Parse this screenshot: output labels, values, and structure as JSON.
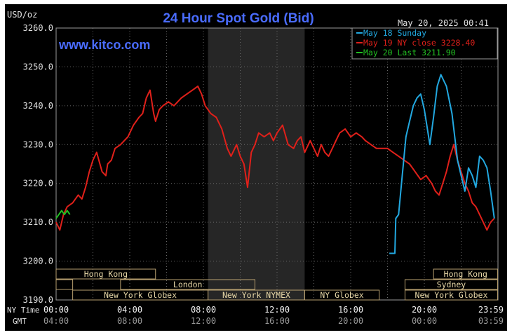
{
  "header": {
    "unit": "USD/oz",
    "title": "24 Hour Spot Gold (Bid)",
    "datetime": "May 20, 2025 00:41",
    "watermark": "www.kitco.com"
  },
  "legend": [
    {
      "text": "May 18 Sunday",
      "color": "#22a8e0"
    },
    {
      "text": "May 19 NY close 3228.40",
      "color": "#e0201a"
    },
    {
      "text": "May 20 Last 3211.90",
      "color": "#22c022"
    }
  ],
  "chart_data": {
    "type": "line",
    "title": "24 Hour Spot Gold (Bid)",
    "ylabel": "USD/oz",
    "ylim": [
      3190,
      3260
    ],
    "yticks": [
      "3260.0",
      "3250.0",
      "3240.0",
      "3230.0",
      "3220.0",
      "3210.0",
      "3200.0",
      "3190.0"
    ],
    "x_unit": "hours",
    "xlim": [
      0,
      24
    ],
    "x_rows": [
      {
        "label": "NY Time",
        "ticks": [
          "00:00",
          "04:00",
          "08:00",
          "12:00",
          "16:00",
          "20:00",
          "23:59"
        ]
      },
      {
        "label": "GMT",
        "ticks": [
          "04:00",
          "08:00",
          "12:00",
          "16:00",
          "20:00",
          "00:00",
          "03:59"
        ]
      }
    ],
    "x_tick_hours": [
      0,
      4,
      8,
      12,
      16,
      20,
      23.98
    ],
    "shaded_range": [
      8.25,
      13.5
    ],
    "sessions": [
      {
        "row": 0,
        "start": 0.0,
        "end": 5.4,
        "label": "Hong Kong"
      },
      {
        "row": 0,
        "start": 20.5,
        "end": 23.98,
        "label": "Hong Kong"
      },
      {
        "row": 1,
        "start": 0.0,
        "end": 0.9,
        "label": ""
      },
      {
        "row": 1,
        "start": 3.5,
        "end": 10.8,
        "label": "London"
      },
      {
        "row": 1,
        "start": 18.95,
        "end": 23.98,
        "label": "Sydney"
      },
      {
        "row": 2,
        "start": 0.9,
        "end": 8.25,
        "label": "New York Globex"
      },
      {
        "row": 2,
        "start": 8.25,
        "end": 13.5,
        "label": "New York NYMEX"
      },
      {
        "row": 2,
        "start": 13.5,
        "end": 17.55,
        "label": "NY Globex"
      },
      {
        "row": 2,
        "start": 18.95,
        "end": 23.98,
        "label": "New York Globex"
      }
    ],
    "series": [
      {
        "name": "May 19 NY close 3228.40",
        "color": "#e0201a",
        "x": [
          0,
          0.2,
          0.4,
          0.6,
          0.9,
          1.2,
          1.4,
          1.6,
          1.8,
          2.0,
          2.2,
          2.5,
          2.7,
          2.8,
          3.0,
          3.2,
          3.5,
          3.9,
          4.2,
          4.5,
          4.7,
          4.9,
          5.1,
          5.3,
          5.4,
          5.6,
          5.8,
          6.1,
          6.4,
          6.8,
          7.1,
          7.4,
          7.7,
          7.9,
          8.1,
          8.4,
          8.7,
          9.0,
          9.3,
          9.5,
          9.8,
          10.0,
          10.2,
          10.4,
          10.6,
          10.8,
          11.0,
          11.3,
          11.6,
          11.8,
          12.0,
          12.3,
          12.6,
          12.9,
          13.1,
          13.3,
          13.5,
          13.8,
          14.0,
          14.2,
          14.4,
          14.6,
          14.8,
          15.0,
          15.2,
          15.4,
          15.7,
          16.0,
          16.3,
          16.6,
          16.8,
          17.1,
          17.4,
          17.7,
          18.0,
          18.3,
          18.6,
          18.9,
          19.2,
          19.5,
          19.8,
          20.1,
          20.4,
          20.6,
          20.8,
          21.0,
          21.2,
          21.4,
          21.6,
          21.8,
          22.0,
          22.2,
          22.4,
          22.6,
          22.8,
          23.0,
          23.2,
          23.4,
          23.6,
          23.8
        ],
        "y": [
          3210,
          3208,
          3212,
          3214,
          3215,
          3217,
          3216,
          3219,
          3223,
          3226,
          3228,
          3223,
          3222,
          3225,
          3226,
          3229,
          3230,
          3232,
          3235,
          3237,
          3238,
          3242,
          3244,
          3238,
          3236,
          3239,
          3240,
          3241,
          3240,
          3242,
          3243,
          3244,
          3245,
          3243,
          3240,
          3238,
          3237,
          3234,
          3229,
          3227,
          3230,
          3227,
          3225,
          3219,
          3228,
          3230,
          3233,
          3232,
          3233,
          3231,
          3233,
          3235,
          3230,
          3229,
          3231,
          3232,
          3228,
          3231,
          3229,
          3227,
          3230,
          3228,
          3227,
          3229,
          3231,
          3233,
          3234,
          3232,
          3233,
          3232,
          3231,
          3230,
          3229,
          3229,
          3229,
          3228,
          3227,
          3226,
          3225,
          3223,
          3221,
          3222,
          3220,
          3218,
          3217,
          3220,
          3223,
          3227,
          3230,
          3226,
          3223,
          3220,
          3218,
          3215,
          3214,
          3212,
          3210,
          3208,
          3210,
          3211
        ]
      },
      {
        "name": "May 18 Sunday",
        "color": "#22a8e0",
        "x": [
          18.1,
          18.4,
          18.45,
          18.6,
          18.8,
          19.0,
          19.2,
          19.4,
          19.6,
          19.8,
          20.0,
          20.3,
          20.5,
          20.7,
          20.9,
          21.2,
          21.5,
          21.8,
          22.0,
          22.2,
          22.4,
          22.6,
          22.8,
          23.0,
          23.2,
          23.4,
          23.6,
          23.8
        ],
        "y": [
          3202,
          3202,
          3211,
          3212,
          3222,
          3232,
          3236,
          3240,
          3242,
          3243,
          3239,
          3230,
          3237,
          3245,
          3248,
          3245,
          3238,
          3226,
          3222,
          3218,
          3224,
          3222,
          3219,
          3227,
          3226,
          3224,
          3218,
          3211
        ]
      },
      {
        "name": "May 20 Last 3211.90",
        "color": "#22c022",
        "x": [
          0.0,
          0.15,
          0.3,
          0.45,
          0.6,
          0.75
        ],
        "y": [
          3211,
          3212,
          3213,
          3212,
          3213,
          3212
        ]
      }
    ]
  }
}
